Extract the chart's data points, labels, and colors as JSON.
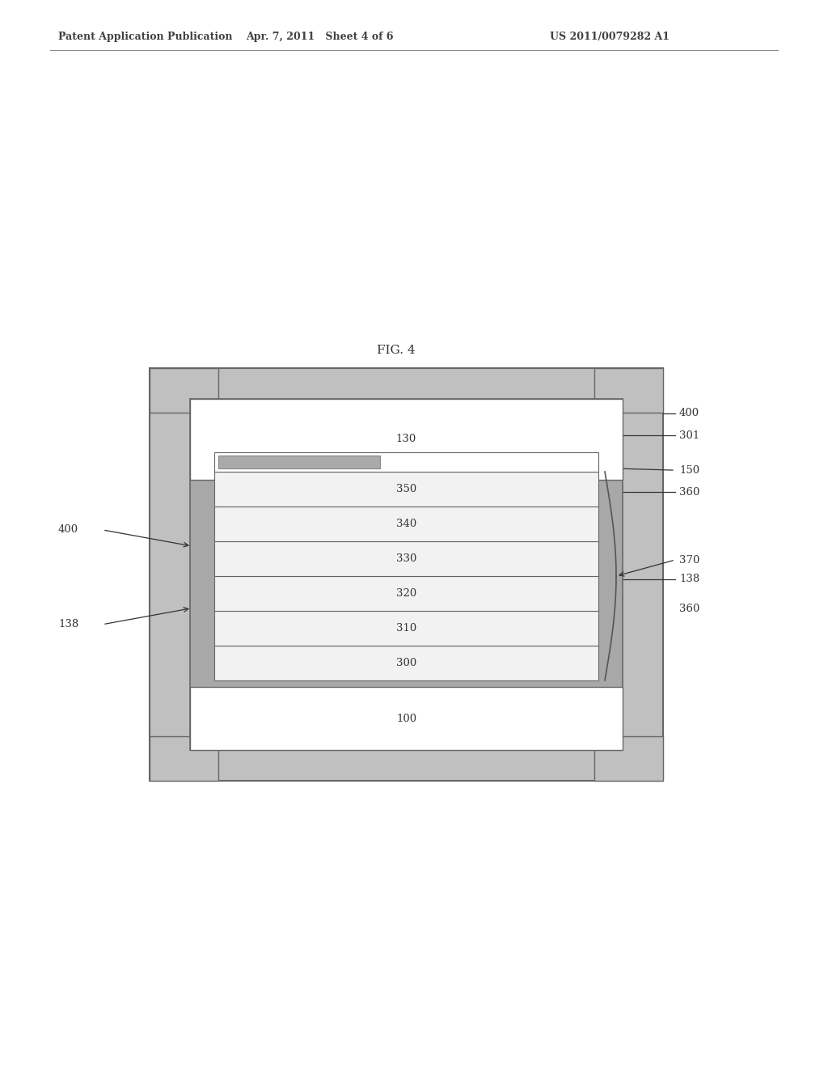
{
  "bg_color": "#ffffff",
  "header_left": "Patent Application Publication",
  "header_mid": "Apr. 7, 2011   Sheet 4 of 6",
  "header_right": "US 2011/0079282 A1",
  "fig_label": "FIG. 4",
  "gray_color": "#c0c0c0",
  "dark_gray": "#a8a8a8",
  "border_color": "#666666",
  "white_color": "#ffffff",
  "layer_gray": "#f2f2f2",
  "small_chip_color": "#aaaaaa",
  "ann_color": "#333333",
  "ann_fontsize": 9.5,
  "header_fontsize": 9,
  "fig_label_fontsize": 11,
  "layer_fontsize": 9.5,
  "layers": [
    "350",
    "340",
    "330",
    "320",
    "310",
    "300"
  ]
}
